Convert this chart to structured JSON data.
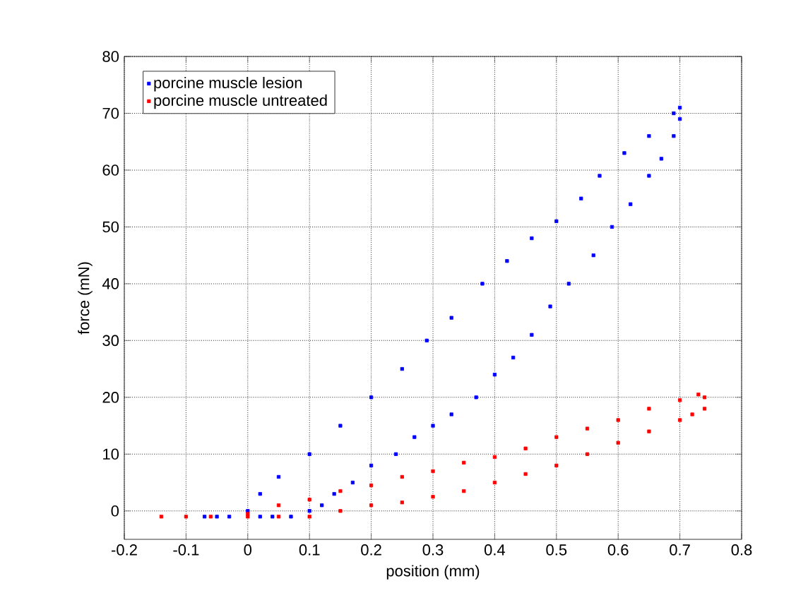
{
  "chart_data": {
    "type": "scatter",
    "xlabel": "position (mm)",
    "ylabel": "force (mN)",
    "xlim": [
      -0.2,
      0.8
    ],
    "xticks": [
      -0.2,
      -0.1,
      0,
      0.1,
      0.2,
      0.3,
      0.4,
      0.5,
      0.6,
      0.7,
      0.8
    ],
    "ylim": [
      -5,
      80
    ],
    "yticks": [
      0,
      10,
      20,
      30,
      40,
      50,
      60,
      70,
      80
    ],
    "grid": true,
    "legend": "top left",
    "marker": "square",
    "series": [
      {
        "name": "porcine muscle lesion",
        "color": "#0000ff",
        "x": [
          -0.07,
          -0.05,
          -0.03,
          0,
          0.02,
          0.05,
          0.1,
          0.15,
          0.2,
          0.25,
          0.29,
          0.33,
          0.38,
          0.42,
          0.46,
          0.5,
          0.54,
          0.57,
          0.61,
          0.65,
          0.69,
          0.7,
          0.7,
          0.69,
          0.67,
          0.65,
          0.62,
          0.59,
          0.56,
          0.52,
          0.49,
          0.46,
          0.43,
          0.4,
          0.37,
          0.33,
          0.3,
          0.27,
          0.24,
          0.2,
          0.17,
          0.14,
          0.12,
          0.1,
          0.07,
          0.04,
          0.02
        ],
        "values": [
          -1,
          -1,
          -1,
          0,
          3,
          6,
          10,
          15,
          20,
          25,
          30,
          34,
          40,
          44,
          48,
          51,
          55,
          59,
          63,
          66,
          70,
          71,
          69,
          66,
          62,
          59,
          54,
          50,
          45,
          40,
          36,
          31,
          27,
          24,
          20,
          17,
          15,
          13,
          10,
          8,
          5,
          3,
          1,
          0,
          -1,
          -1,
          -1
        ]
      },
      {
        "name": "porcine muscle untreated",
        "color": "#ff0000",
        "x": [
          -0.14,
          -0.1,
          -0.06,
          0,
          0.05,
          0.1,
          0.15,
          0.2,
          0.25,
          0.3,
          0.35,
          0.4,
          0.45,
          0.5,
          0.55,
          0.6,
          0.65,
          0.7,
          0.73,
          0.74,
          0.74,
          0.72,
          0.7,
          0.65,
          0.6,
          0.55,
          0.5,
          0.45,
          0.4,
          0.35,
          0.3,
          0.25,
          0.2,
          0.15,
          0.1,
          0.05,
          0
        ],
        "values": [
          -1,
          -1,
          -1,
          -0.5,
          1,
          2,
          3.5,
          4.5,
          6,
          7,
          8.5,
          9.5,
          11,
          13,
          14.5,
          16,
          18,
          19.5,
          20.5,
          20,
          18,
          17,
          16,
          14,
          12,
          10,
          8,
          6.5,
          5,
          3.5,
          2.5,
          1.5,
          1,
          0,
          -1,
          -1,
          -1
        ]
      }
    ]
  }
}
